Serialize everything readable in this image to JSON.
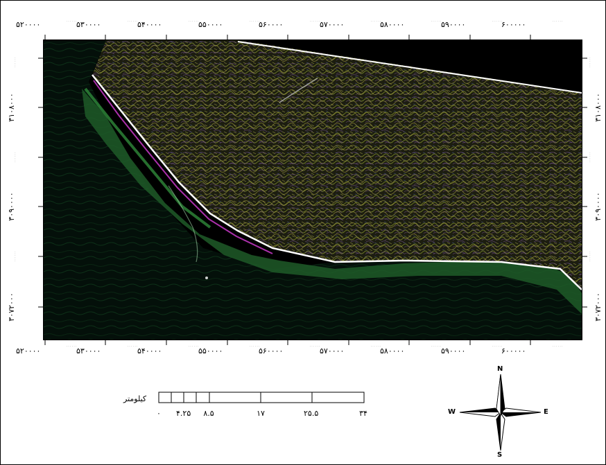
{
  "map": {
    "x_ticks_top": [
      "۵۲۰۰۰۰",
      "۵۳۰۰۰۰",
      "۵۴۰۰۰۰",
      "۵۵۰۰۰۰",
      "۵۶۰۰۰۰",
      "۵۷۰۰۰۰",
      "۵۸۰۰۰۰",
      "۵۹۰۰۰۰",
      "۶۰۰۰۰۰"
    ],
    "x_ticks_bottom": [
      "۵۲۰۰۰۰",
      "۵۳۰۰۰۰",
      "۵۴۰۰۰۰",
      "۵۵۰۰۰۰",
      "۵۶۰۰۰۰",
      "۵۷۰۰۰۰",
      "۵۸۰۰۰۰",
      "۵۹۰۰۰۰",
      "۶۰۰۰۰۰"
    ],
    "x_minor_label": "۰۰۰۰۰۰",
    "y_ticks": [
      "۳۱۰۸۰۰۰",
      "۳۰۹۰۰۰۰",
      "۳۰۷۲۰۰۰"
    ],
    "y_minor_label": "۰۰۰۰۰۰",
    "colors": {
      "sea": "#05140a",
      "land": "#1c1d10",
      "coast_land": "#ffffff",
      "coast_sea": "#2f8a3a",
      "highlight": "#d63cd6"
    }
  },
  "scale_bar": {
    "unit": "کیلومتر",
    "labels": [
      "۰",
      "۴.۲۵",
      "۸.۵",
      "۱۷",
      "۲۵.۵",
      "۳۴"
    ]
  },
  "north_arrow": {
    "n": "N",
    "s": "S",
    "e": "E",
    "w": "W"
  }
}
